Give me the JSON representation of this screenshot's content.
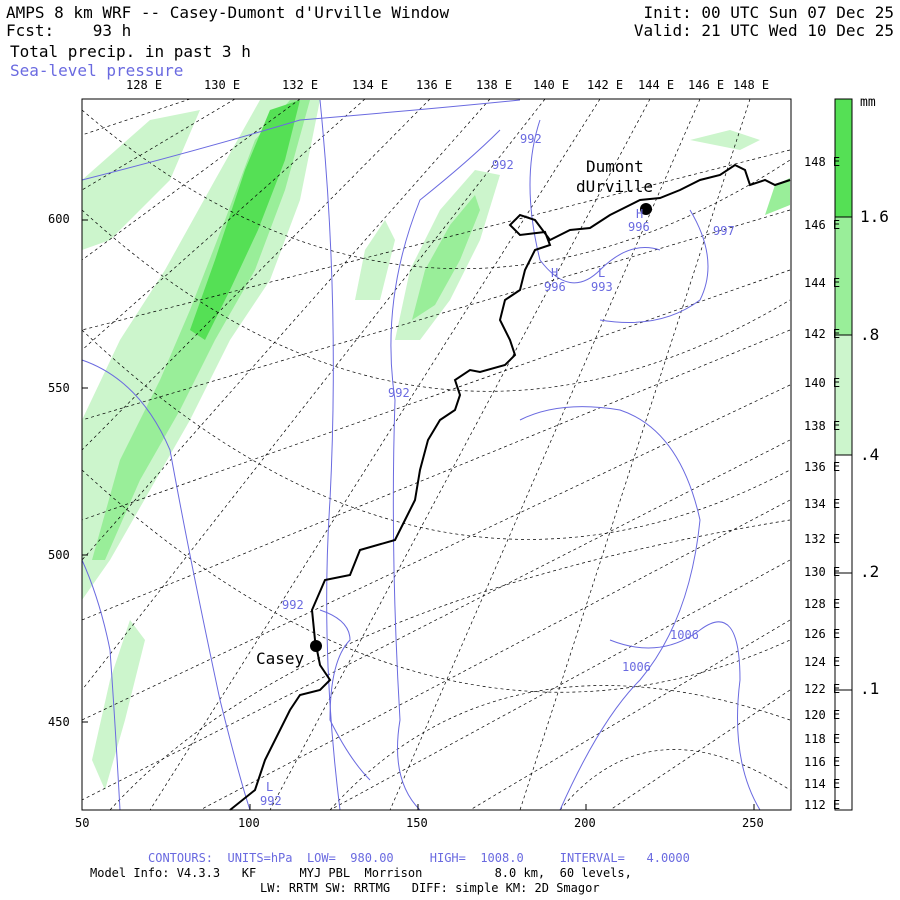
{
  "header": {
    "title": "AMPS 8 km WRF -- Casey-Dumont d'Urville Window",
    "forecast": "Fcst:    93 h",
    "init": "Init: 00 UTC Sun 07 Dec 25",
    "valid": "Valid: 21 UTC Wed 10 Dec 25",
    "field1": "Total precip. in past 3 h",
    "field2": "Sea-level pressure"
  },
  "top_lon_labels": [
    "128 E",
    "130 E",
    "132 E",
    "134 E",
    "136 E",
    "138 E",
    "140 E",
    "142 E",
    "144 E",
    "146 E",
    "148 E"
  ],
  "right_lon_labels": [
    "148 E",
    "146 E",
    "144 E",
    "142 E",
    "140 E",
    "138 E",
    "136 E",
    "134 E",
    "132 E",
    "130 E",
    "128 E",
    "126 E",
    "124 E",
    "122 E",
    "120 E",
    "118 E",
    "116 E",
    "114 E",
    "112 E"
  ],
  "x_ticks": [
    "50",
    "100",
    "150",
    "200",
    "250"
  ],
  "y_ticks": [
    "600",
    "550",
    "500",
    "450"
  ],
  "colorbar": {
    "unit": "mm",
    "levels": [
      ".1",
      ".2",
      ".4",
      ".8",
      "1.6"
    ],
    "colors": [
      "#ffffff",
      "#ffffff",
      "#ccf5cc",
      "#99ee99",
      "#55e055"
    ]
  },
  "stations": [
    {
      "name": "Casey"
    },
    {
      "name_line1": "Dumont",
      "name_line2": "dUrville"
    }
  ],
  "pressure_labels": [
    "992",
    "992",
    "996",
    "993",
    "996",
    "997",
    "992",
    "992",
    "1006",
    "1006",
    "992"
  ],
  "center_marks": [
    "H",
    "L",
    "H",
    "L"
  ],
  "colors": {
    "contour": "#6a6ae0",
    "coast": "#000000",
    "grid": "#000000"
  },
  "footer": {
    "contours": "CONTOURS:  UNITS=hPa  LOW=  980.00     HIGH=  1008.0     INTERVAL=   4.0000",
    "model": "Model Info: V4.3.3   KF      MYJ PBL  Morrison          8.0 km,  60 levels,",
    "physics": "LW: RRTM SW: RRTMG   DIFF: simple KM: 2D Smagor"
  }
}
